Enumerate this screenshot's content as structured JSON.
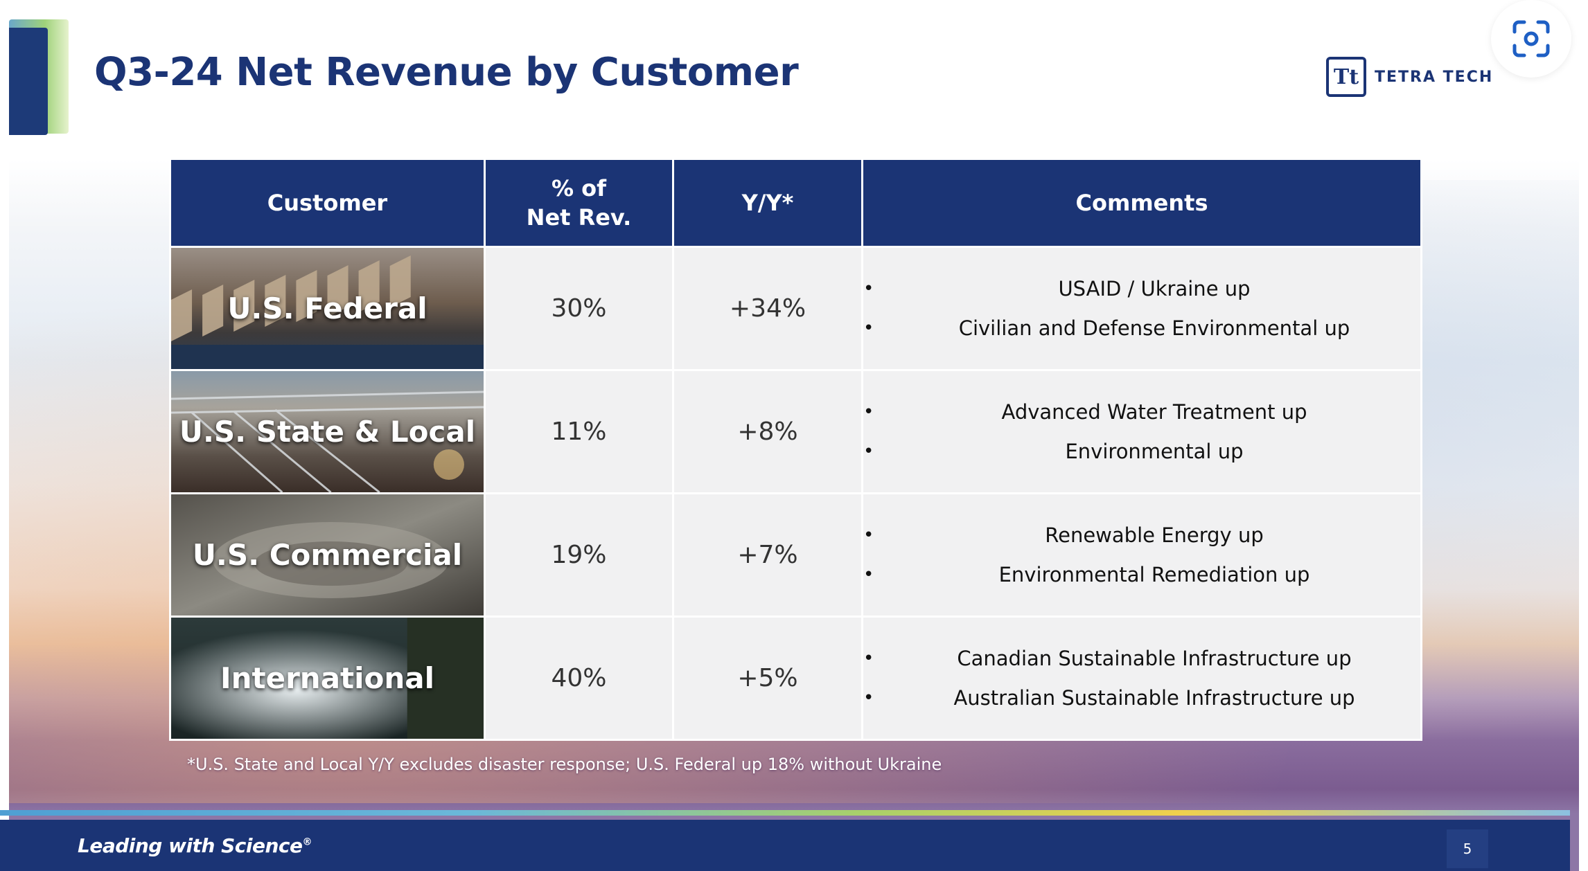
{
  "slide": {
    "title": "Q3-24 Net Revenue by Customer",
    "logo": {
      "mark": "Tt",
      "text": "TETRA TECH"
    },
    "scan_button_icon": "scan-text-icon"
  },
  "table": {
    "headers": {
      "customer": "Customer",
      "pct_line1": "% of",
      "pct_line2": "Net Rev.",
      "yy": "Y/Y*",
      "comments": "Comments"
    },
    "rows": [
      {
        "customer": "U.S. Federal",
        "pct": "30%",
        "yy": "+34%",
        "comments": [
          "USAID / Ukraine up",
          "Civilian and Defense Environmental up"
        ]
      },
      {
        "customer": "U.S. State & Local",
        "pct": "11%",
        "yy": "+8%",
        "comments": [
          "Advanced Water Treatment up",
          "Environmental up"
        ]
      },
      {
        "customer": "U.S. Commercial",
        "pct": "19%",
        "yy": "+7%",
        "comments": [
          "Renewable Energy up",
          "Environmental Remediation up"
        ]
      },
      {
        "customer": "International",
        "pct": "40%",
        "yy": "+5%",
        "comments": [
          "Canadian Sustainable Infrastructure up",
          "Australian Sustainable Infrastructure up"
        ]
      }
    ]
  },
  "footnote": "*U.S. State and Local Y/Y excludes disaster response; U.S. Federal up 18% without Ukraine",
  "footer": {
    "tagline": "Leading with Science",
    "tagline_mark": "®",
    "page_number": "5"
  }
}
